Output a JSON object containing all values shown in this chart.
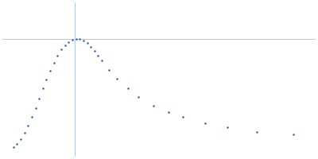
{
  "dot_color": "#2457a8",
  "dot_size": 3,
  "axis_color": "#aaccee",
  "background_color": "#ffffff",
  "x_points": [
    0.01,
    0.015,
    0.02,
    0.025,
    0.03,
    0.035,
    0.04,
    0.045,
    0.05,
    0.055,
    0.06,
    0.065,
    0.07,
    0.075,
    0.08,
    0.085,
    0.09,
    0.095,
    0.1,
    0.105,
    0.11,
    0.115,
    0.12,
    0.125,
    0.13,
    0.14,
    0.15,
    0.165,
    0.18,
    0.2,
    0.22,
    0.24,
    0.27,
    0.3,
    0.34,
    0.39
  ],
  "y_points": [
    0.008,
    0.013,
    0.02,
    0.028,
    0.038,
    0.05,
    0.063,
    0.076,
    0.09,
    0.103,
    0.115,
    0.126,
    0.136,
    0.144,
    0.15,
    0.155,
    0.158,
    0.159,
    0.159,
    0.157,
    0.153,
    0.148,
    0.142,
    0.136,
    0.129,
    0.116,
    0.104,
    0.09,
    0.078,
    0.066,
    0.057,
    0.05,
    0.042,
    0.036,
    0.03,
    0.026
  ],
  "vline_x": 0.093,
  "hline_y": 0.159,
  "xlim": [
    -0.005,
    0.42
  ],
  "ylim": [
    -0.005,
    0.21
  ]
}
